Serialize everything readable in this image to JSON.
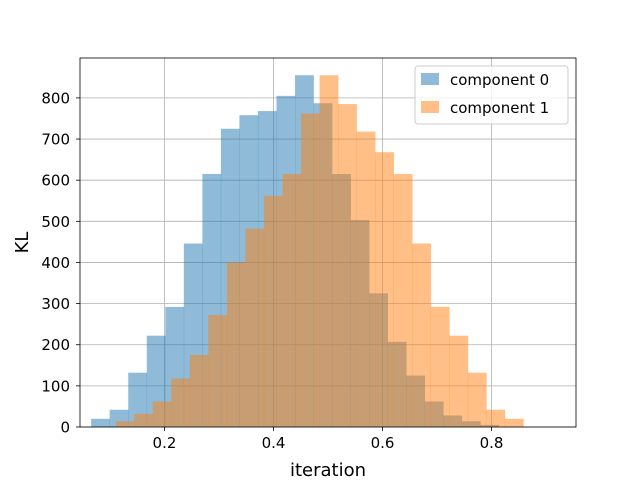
{
  "chart_data": {
    "type": "bar",
    "title": "",
    "xlabel": "iteration",
    "ylabel": "KL",
    "xlim": [
      0.045,
      0.955
    ],
    "ylim": [
      0,
      897
    ],
    "grid": true,
    "legend_position": "top-right",
    "bin_width": 0.034,
    "xticks": [
      0.2,
      0.4,
      0.6,
      0.8
    ],
    "xtick_labels": [
      "0.2",
      "0.4",
      "0.6",
      "0.8"
    ],
    "yticks": [
      0,
      100,
      200,
      300,
      400,
      500,
      600,
      700,
      800
    ],
    "ytick_labels": [
      "0",
      "100",
      "200",
      "300",
      "400",
      "500",
      "600",
      "700",
      "800"
    ],
    "series": [
      {
        "name": "component 0",
        "color": "#1f77b4",
        "opacity": 0.5,
        "bin_start": 0.0655,
        "values": [
          20,
          42,
          132,
          222,
          292,
          446,
          615,
          725,
          758,
          768,
          805,
          855,
          787,
          615,
          503,
          325,
          207,
          125,
          62,
          28,
          14,
          5
        ]
      },
      {
        "name": "component 1",
        "color": "#ff7f0e",
        "opacity": 0.5,
        "bin_start": 0.1105,
        "values": [
          14,
          32,
          62,
          118,
          175,
          272,
          400,
          482,
          562,
          615,
          762,
          855,
          785,
          718,
          668,
          615,
          446,
          292,
          222,
          132,
          42,
          20
        ]
      }
    ]
  }
}
